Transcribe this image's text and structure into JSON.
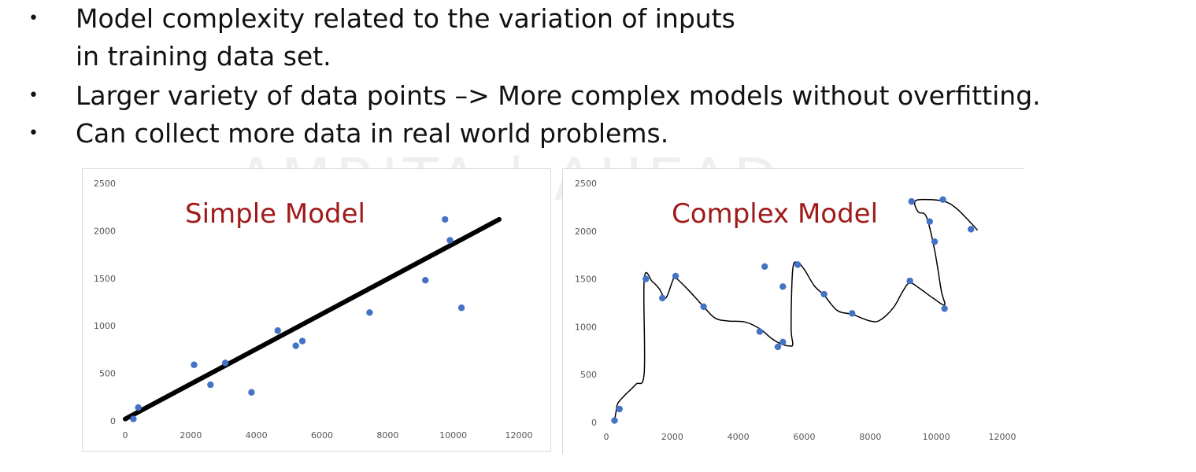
{
  "bullets": [
    {
      "symbol": "•",
      "lines": [
        "Model complexity related to the variation of inputs",
        "in training data set."
      ]
    },
    {
      "symbol": "•",
      "lines": [
        "Larger variety of data points –> More complex models without overfitting."
      ]
    },
    {
      "symbol": "•",
      "lines": [
        "Can collect more data in real world problems."
      ]
    }
  ],
  "watermark": "AMRITA | AHEAD",
  "chart_data": [
    {
      "type": "scatter",
      "title": "Simple Model",
      "xlim": [
        0,
        12000
      ],
      "ylim": [
        0,
        2500
      ],
      "xticks": [
        0,
        2000,
        4000,
        6000,
        8000,
        10000,
        12000
      ],
      "yticks": [
        0,
        500,
        1000,
        1500,
        2000,
        2500
      ],
      "point_color": "#4472c4",
      "points": [
        [
          250,
          20
        ],
        [
          400,
          140
        ],
        [
          2100,
          590
        ],
        [
          2600,
          380
        ],
        [
          3050,
          610
        ],
        [
          3850,
          300
        ],
        [
          4650,
          950
        ],
        [
          5200,
          790
        ],
        [
          5400,
          840
        ],
        [
          7450,
          1140
        ],
        [
          9150,
          1480
        ],
        [
          9750,
          2120
        ],
        [
          9900,
          1900
        ],
        [
          10250,
          1190
        ]
      ],
      "fit_line": {
        "type": "linear",
        "color": "#000000",
        "points": [
          [
            0,
            20
          ],
          [
            11400,
            2120
          ]
        ]
      }
    },
    {
      "type": "scatter",
      "title": "Complex Model",
      "xlim": [
        0,
        12000
      ],
      "ylim": [
        0,
        2500
      ],
      "xticks": [
        0,
        2000,
        4000,
        6000,
        8000,
        10000,
        12000
      ],
      "yticks": [
        0,
        500,
        1000,
        1500,
        2000,
        2500
      ],
      "point_color": "#4472c4",
      "points": [
        [
          250,
          20
        ],
        [
          400,
          140
        ],
        [
          1200,
          1500
        ],
        [
          1700,
          1300
        ],
        [
          2100,
          1530
        ],
        [
          2950,
          1210
        ],
        [
          4650,
          950
        ],
        [
          4800,
          1630
        ],
        [
          5200,
          790
        ],
        [
          5350,
          1420
        ],
        [
          5350,
          840
        ],
        [
          5800,
          1650
        ],
        [
          6600,
          1340
        ],
        [
          7450,
          1140
        ],
        [
          9200,
          1480
        ],
        [
          9250,
          2310
        ],
        [
          9800,
          2100
        ],
        [
          9950,
          1890
        ],
        [
          10200,
          2330
        ],
        [
          10250,
          1190
        ],
        [
          11050,
          2020
        ]
      ],
      "fit_line": {
        "type": "hand-drawn curve",
        "color": "#000000",
        "points": [
          [
            250,
            20
          ],
          [
            300,
            120
          ],
          [
            350,
            200
          ],
          [
            550,
            280
          ],
          [
            900,
            400
          ],
          [
            1150,
            520
          ],
          [
            1150,
            1500
          ],
          [
            1400,
            1470
          ],
          [
            1600,
            1400
          ],
          [
            1800,
            1300
          ],
          [
            2000,
            1470
          ],
          [
            2100,
            1510
          ],
          [
            2500,
            1380
          ],
          [
            2950,
            1210
          ],
          [
            3300,
            1090
          ],
          [
            3700,
            1060
          ],
          [
            4200,
            1050
          ],
          [
            4650,
            980
          ],
          [
            5000,
            880
          ],
          [
            5300,
            820
          ],
          [
            5550,
            800
          ],
          [
            5650,
            820
          ],
          [
            5600,
            1000
          ],
          [
            5650,
            1600
          ],
          [
            5800,
            1670
          ],
          [
            6000,
            1600
          ],
          [
            6300,
            1430
          ],
          [
            6600,
            1330
          ],
          [
            7000,
            1170
          ],
          [
            7450,
            1130
          ],
          [
            8000,
            1060
          ],
          [
            8300,
            1070
          ],
          [
            8700,
            1200
          ],
          [
            9000,
            1380
          ],
          [
            9200,
            1460
          ],
          [
            9500,
            1400
          ],
          [
            9900,
            1300
          ],
          [
            10250,
            1230
          ],
          [
            10150,
            1380
          ],
          [
            9950,
            1800
          ],
          [
            9700,
            2150
          ],
          [
            9450,
            2200
          ],
          [
            9350,
            2310
          ],
          [
            9650,
            2330
          ],
          [
            10250,
            2310
          ],
          [
            10600,
            2240
          ],
          [
            10900,
            2140
          ],
          [
            11250,
            2010
          ]
        ]
      }
    }
  ]
}
